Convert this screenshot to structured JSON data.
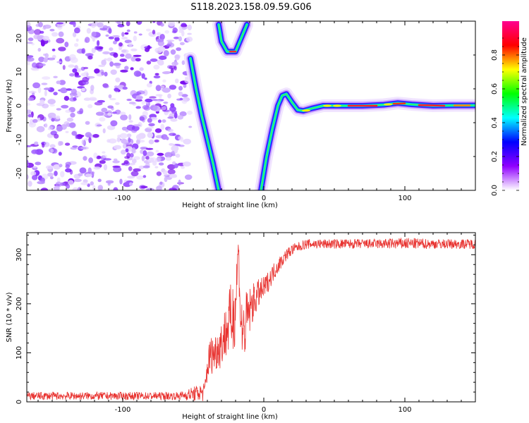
{
  "title": "S118.2023.158.09.59.G06",
  "chart_data": [
    {
      "type": "heatmap",
      "xlabel": "Height of straight line (km)",
      "ylabel": "Frequency (Hz)",
      "xlim": [
        -168,
        150
      ],
      "ylim": [
        -25,
        25
      ],
      "xticks": [
        -100,
        0,
        100
      ],
      "yticks": [
        -20,
        -10,
        0,
        10,
        20
      ],
      "colorbar": {
        "label": "Normalized spectral amplitude",
        "range": [
          0,
          1
        ],
        "ticks": [
          "0.0",
          "0.2",
          "0.4",
          "0.6",
          "0.8"
        ],
        "colors": [
          "#ffffff",
          "#9000ff",
          "#0000ff",
          "#00ffff",
          "#00ff00",
          "#ffff00",
          "#ff0000",
          "#ff0090"
        ]
      },
      "noise_region_x": [
        -168,
        -52
      ],
      "traces": [
        {
          "points": [
            [
              -52,
              14
            ],
            [
              -48,
              5
            ],
            [
              -44,
              -3
            ],
            [
              -40,
              -10
            ],
            [
              -36,
              -17
            ],
            [
              -32,
              -25
            ]
          ]
        },
        {
          "points": [
            [
              -32,
              24
            ],
            [
              -30,
              19
            ],
            [
              -26,
              16
            ],
            [
              -20,
              16
            ],
            [
              -16,
              20
            ],
            [
              -12,
              24
            ]
          ]
        },
        {
          "points": [
            [
              -2,
              -25
            ],
            [
              2,
              -15
            ],
            [
              6,
              -7
            ],
            [
              10,
              0
            ],
            [
              13,
              3
            ],
            [
              16,
              3.5
            ],
            [
              20,
              1
            ],
            [
              24,
              -1.2
            ],
            [
              28,
              -1.5
            ],
            [
              34,
              -0.8
            ],
            [
              42,
              0
            ],
            [
              55,
              0
            ],
            [
              70,
              0
            ],
            [
              85,
              0.3
            ],
            [
              95,
              0.8
            ],
            [
              105,
              0.4
            ],
            [
              120,
              0
            ],
            [
              135,
              0.1
            ],
            [
              150,
              0.1
            ]
          ]
        }
      ]
    },
    {
      "type": "line",
      "xlabel": "Height of straight line (km)",
      "ylabel": "SNR (10 * v/v)",
      "xlim": [
        -168,
        150
      ],
      "ylim": [
        0,
        345
      ],
      "xticks": [
        -100,
        0,
        100
      ],
      "yticks": [
        0,
        100,
        200,
        300
      ],
      "color": "#e8322f",
      "x": [
        -168,
        -60,
        -42,
        -40,
        -38,
        -35,
        -30,
        -26,
        -24,
        -22,
        -20,
        -18,
        -17,
        -16,
        -14,
        -12,
        -10,
        -8,
        -4,
        0,
        4,
        8,
        12,
        16,
        20,
        24,
        28,
        32,
        40,
        60,
        80,
        100,
        120,
        150
      ],
      "values": [
        12,
        12,
        20,
        70,
        95,
        100,
        120,
        150,
        165,
        175,
        200,
        320,
        225,
        150,
        140,
        170,
        185,
        200,
        220,
        230,
        250,
        270,
        285,
        300,
        310,
        315,
        320,
        322,
        322,
        322,
        322,
        323,
        322,
        322
      ],
      "noise_amplitude": [
        8,
        8,
        20,
        30,
        40,
        40,
        50,
        60,
        70,
        80,
        80,
        20,
        70,
        80,
        70,
        60,
        50,
        40,
        30,
        25,
        20,
        18,
        15,
        12,
        12,
        10,
        10,
        10,
        10,
        10,
        10,
        12,
        10,
        10
      ]
    }
  ]
}
